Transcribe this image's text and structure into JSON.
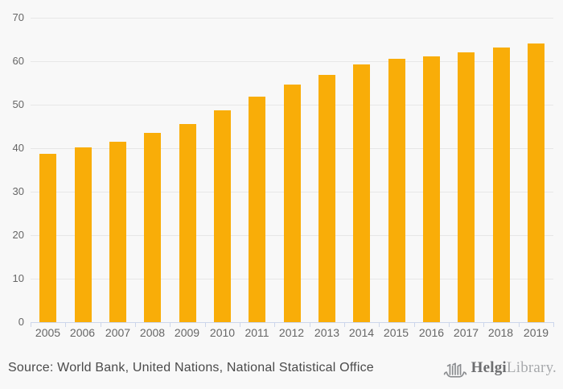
{
  "chart_data": {
    "type": "bar",
    "categories": [
      "2005",
      "2006",
      "2007",
      "2008",
      "2009",
      "2010",
      "2011",
      "2012",
      "2013",
      "2014",
      "2015",
      "2016",
      "2017",
      "2018",
      "2019"
    ],
    "values": [
      38.7,
      40.1,
      41.4,
      43.5,
      45.5,
      48.7,
      51.9,
      54.7,
      56.9,
      59.2,
      60.5,
      61.2,
      62.1,
      63.1,
      64.0
    ],
    "ylim": [
      0,
      70
    ],
    "ytick_step": 10,
    "ytick_labels": [
      "0",
      "10",
      "20",
      "30",
      "40",
      "50",
      "60",
      "70"
    ],
    "grid": true,
    "legend": "none",
    "bar_color": "#f9ad08",
    "grid_color": "#e7e7e7",
    "axis_line_color": "#ccd6eb",
    "label_color": "#666666",
    "background_color": "#f8f8f8"
  },
  "footer": {
    "source": "Source: World Bank, United Nations, National Statistical Office",
    "logo": {
      "part1": "Helgi",
      "part2": "Library.",
      "part1_color": "#6d6e70",
      "part2_color": "#a7a9ac",
      "icon": "viking-ship-icon",
      "icon_color": "#8a8c8f"
    }
  }
}
